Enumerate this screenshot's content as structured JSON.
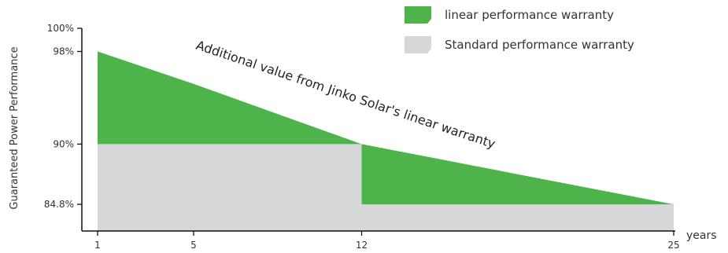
{
  "chart_data": {
    "type": "area",
    "ylabel": "Guaranteed Power Performance",
    "xlabel": "",
    "x_unit_label": "years",
    "xlim": [
      1,
      25
    ],
    "ylim": [
      82.5,
      100
    ],
    "x_ticks": [
      1,
      5,
      12,
      25
    ],
    "y_ticks": [
      {
        "value": 100,
        "label": "100%"
      },
      {
        "value": 98,
        "label": "98%"
      },
      {
        "value": 90,
        "label": "90%"
      },
      {
        "value": 84.8,
        "label": "84.8%"
      }
    ],
    "series": [
      {
        "name": "linear performance warranty",
        "color": "#4db34a",
        "points": [
          {
            "x": 1,
            "y": 98
          },
          {
            "x": 5,
            "y": 95.2
          },
          {
            "x": 12,
            "y": 90
          },
          {
            "x": 25,
            "y": 84.8
          }
        ]
      },
      {
        "name": "Standard performance warranty",
        "color": "#d6d7d8",
        "points": [
          {
            "x": 1,
            "y": 90
          },
          {
            "x": 12,
            "y": 90
          },
          {
            "x": 12,
            "y": 84.8
          },
          {
            "x": 25,
            "y": 84.8
          }
        ]
      }
    ],
    "annotation": "Additional value from Jinko Solar's linear warranty",
    "legend_position": "top-right",
    "grid": false
  }
}
